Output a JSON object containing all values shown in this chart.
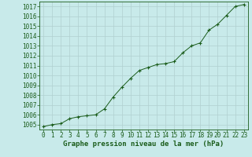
{
  "x": [
    0,
    1,
    2,
    3,
    4,
    5,
    6,
    7,
    8,
    9,
    10,
    11,
    12,
    13,
    14,
    15,
    16,
    17,
    18,
    19,
    20,
    21,
    22,
    23
  ],
  "y": [
    1004.8,
    1005.0,
    1005.1,
    1005.6,
    1005.8,
    1005.9,
    1006.0,
    1006.6,
    1007.8,
    1008.8,
    1009.7,
    1010.5,
    1010.8,
    1011.1,
    1011.2,
    1011.4,
    1012.3,
    1013.0,
    1013.3,
    1014.6,
    1015.2,
    1016.1,
    1017.0,
    1017.2
  ],
  "ylim": [
    1004.5,
    1017.5
  ],
  "yticks": [
    1005,
    1006,
    1007,
    1008,
    1009,
    1010,
    1011,
    1012,
    1013,
    1014,
    1015,
    1016,
    1017
  ],
  "xlim": [
    -0.5,
    23.5
  ],
  "xticks": [
    0,
    1,
    2,
    3,
    4,
    5,
    6,
    7,
    8,
    9,
    10,
    11,
    12,
    13,
    14,
    15,
    16,
    17,
    18,
    19,
    20,
    21,
    22,
    23
  ],
  "line_color": "#1a5c1a",
  "marker_color": "#1a5c1a",
  "bg_color": "#c8eaea",
  "grid_color": "#b0d0d0",
  "xlabel": "Graphe pression niveau de la mer (hPa)",
  "xlabel_color": "#1a5c1a",
  "tick_color": "#1a5c1a",
  "xlabel_fontsize": 6.5,
  "tick_fontsize": 5.5
}
